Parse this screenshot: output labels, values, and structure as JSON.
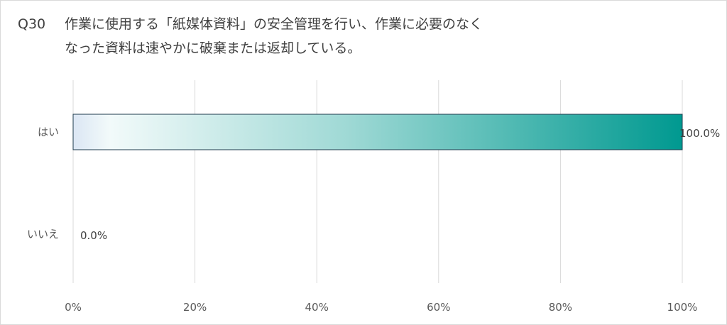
{
  "question": {
    "number": "Q30",
    "line1": "作業に使用する「紙媒体資料」の安全管理を行い、作業に必要のなく",
    "line2": "なった資料は速やかに破棄または返却している。"
  },
  "chart_data": {
    "type": "bar",
    "orientation": "horizontal",
    "categories": [
      "はい",
      "いいえ"
    ],
    "values": [
      100.0,
      0.0
    ],
    "value_labels": [
      "100.0%",
      "0.0%"
    ],
    "xlim": [
      0,
      100
    ],
    "xticks": [
      0,
      20,
      40,
      60,
      80,
      100
    ],
    "xtick_labels": [
      "0%",
      "20%",
      "40%",
      "60%",
      "80%",
      "100%"
    ],
    "grid": true,
    "bar_gradient": [
      "#dbe6f4",
      "#f2fafa",
      "#9fd9d5",
      "#009990"
    ],
    "bar_border": "#1f3b4d",
    "grid_color": "#d9d9d9",
    "text_color": "#595959"
  }
}
